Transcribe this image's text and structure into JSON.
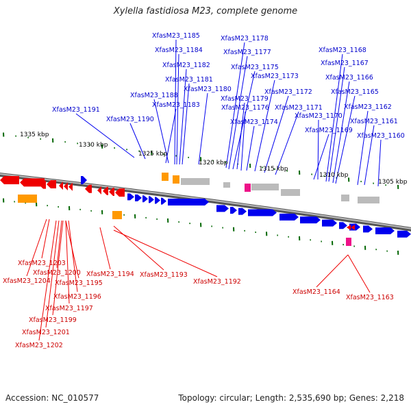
{
  "title": "Xylella fastidiosa M23, complete genome",
  "footer": {
    "accession": "Accession: NC_010577",
    "info": "Topology: circular; Length: 2,535,690 bp; Genes: 2,218"
  },
  "axis_labels": [
    "1335 kbp",
    "1330 kbp",
    "1325 kbp",
    "1320 kbp",
    "1315 kbp",
    "1310 kbp",
    "1305 kbp"
  ],
  "forward_labels": [
    "XfasM23_1185",
    "XfasM23_1184",
    "XfasM23_1182",
    "XfasM23_1181",
    "XfasM23_1180",
    "XfasM23_1188",
    "XfasM23_1183",
    "XfasM23_1191",
    "XfasM23_1190",
    "XfasM23_1178",
    "XfasM23_1177",
    "XfasM23_1175",
    "XfasM23_1173",
    "XfasM23_1172",
    "XfasM23_1179",
    "XfasM23_1176",
    "XfasM23_1171",
    "XfasM23_1174",
    "XfasM23_1168",
    "XfasM23_1167",
    "XfasM23_1166",
    "XfasM23_1165",
    "XfasM23_1162",
    "XfasM23_1170",
    "XfasM23_1161",
    "XfasM23_1169",
    "XfasM23_1160"
  ],
  "reverse_labels": [
    "XfasM23_1203",
    "XfasM23_1204",
    "XfasM23_1200",
    "XfasM23_1194",
    "XfasM23_1193",
    "XfasM23_1192",
    "XfasM23_1195",
    "XfasM23_1196",
    "XfasM23_1197",
    "XfasM23_1199",
    "XfasM23_1201",
    "XfasM23_1202",
    "XfasM23_1164",
    "XfasM23_1163"
  ],
  "colors": {
    "forward_gene": "#0000ee",
    "reverse_gene": "#ee0000",
    "rRNA": "#ff9900",
    "other": "#bbbbbb",
    "misc": "#ee1188",
    "tick": "#006600",
    "backbone": "#777777"
  }
}
